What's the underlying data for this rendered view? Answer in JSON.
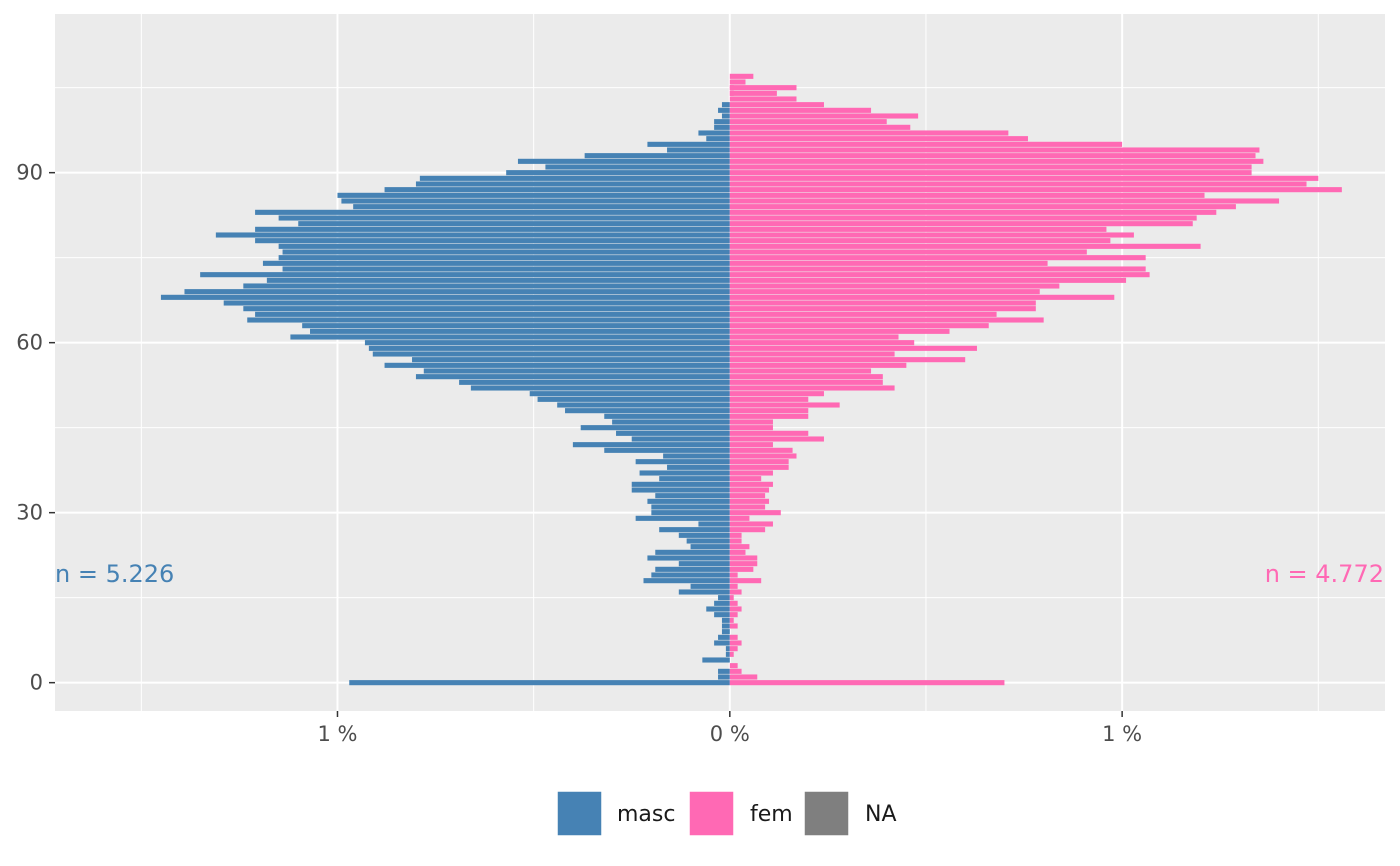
{
  "chart_data": {
    "type": "bar",
    "orientation": "horizontal",
    "layout": "population-pyramid",
    "title": "",
    "xlabel": "",
    "ylabel": "",
    "x_unit": "%",
    "xlim": [
      -1.72,
      1.67
    ],
    "ylim": [
      -5,
      118
    ],
    "x_ticks": [
      {
        "value": -1,
        "label": "1 %"
      },
      {
        "value": 0,
        "label": "0 %"
      },
      {
        "value": 1,
        "label": "1 %"
      }
    ],
    "y_ticks": [
      {
        "value": 0,
        "label": "0"
      },
      {
        "value": 30,
        "label": "30"
      },
      {
        "value": 60,
        "label": "60"
      },
      {
        "value": 90,
        "label": "90"
      }
    ],
    "y_minor_ticks": [
      15,
      45,
      75,
      105
    ],
    "x_minor_ticks": [
      -1.5,
      -0.5,
      0.5,
      1.5
    ],
    "grid": true,
    "legend_position": "bottom",
    "ages": [
      0,
      1,
      2,
      3,
      4,
      5,
      6,
      7,
      8,
      9,
      10,
      11,
      12,
      13,
      14,
      15,
      16,
      17,
      18,
      19,
      20,
      21,
      22,
      23,
      24,
      25,
      26,
      27,
      28,
      29,
      30,
      31,
      32,
      33,
      34,
      35,
      36,
      37,
      38,
      39,
      40,
      41,
      42,
      43,
      44,
      45,
      46,
      47,
      48,
      49,
      50,
      51,
      52,
      53,
      54,
      55,
      56,
      57,
      58,
      59,
      60,
      61,
      62,
      63,
      64,
      65,
      66,
      67,
      68,
      69,
      70,
      71,
      72,
      73,
      74,
      75,
      76,
      77,
      78,
      79,
      80,
      81,
      82,
      83,
      84,
      85,
      86,
      87,
      88,
      89,
      90,
      91,
      92,
      93,
      94,
      95,
      96,
      97,
      98,
      99,
      100,
      101,
      102,
      103,
      104,
      105,
      106,
      107,
      108,
      109,
      110,
      111,
      112
    ],
    "series": [
      {
        "name": "masc",
        "color": "#4682b4",
        "total_label": "n = 5.226",
        "values": [
          0.97,
          0.03,
          0.03,
          0,
          0.07,
          0.01,
          0.01,
          0.04,
          0.03,
          0.02,
          0.02,
          0.02,
          0.04,
          0.06,
          0.04,
          0.03,
          0.13,
          0.1,
          0.22,
          0.2,
          0.19,
          0.13,
          0.21,
          0.19,
          0.1,
          0.11,
          0.13,
          0.18,
          0.08,
          0.24,
          0.2,
          0.2,
          0.21,
          0.19,
          0.25,
          0.25,
          0.18,
          0.23,
          0.16,
          0.24,
          0.17,
          0.32,
          0.4,
          0.25,
          0.29,
          0.38,
          0.3,
          0.32,
          0.42,
          0.44,
          0.49,
          0.51,
          0.66,
          0.69,
          0.8,
          0.78,
          0.88,
          0.81,
          0.91,
          0.92,
          0.93,
          1.12,
          1.07,
          1.09,
          1.23,
          1.21,
          1.24,
          1.29,
          1.45,
          1.39,
          1.24,
          1.18,
          1.35,
          1.14,
          1.19,
          1.15,
          1.14,
          1.15,
          1.21,
          1.31,
          1.21,
          1.1,
          1.15,
          1.21,
          0.96,
          0.99,
          1.0,
          0.88,
          0.8,
          0.79,
          0.57,
          0.47,
          0.54,
          0.37,
          0.16,
          0.21,
          0.06,
          0.08,
          0.04,
          0.04,
          0.02,
          0.03,
          0.02,
          0,
          0,
          0,
          0,
          0,
          0,
          0,
          0,
          0,
          0
        ]
      },
      {
        "name": "fem",
        "color": "#ff69b4",
        "total_label": "n = 4.772",
        "values": [
          0.7,
          0.07,
          0.03,
          0.02,
          0,
          0.01,
          0.02,
          0.03,
          0.02,
          0,
          0.02,
          0.01,
          0.02,
          0.03,
          0.02,
          0.01,
          0.03,
          0.02,
          0.08,
          0.02,
          0.06,
          0.07,
          0.07,
          0.04,
          0.05,
          0.03,
          0.03,
          0.09,
          0.11,
          0.05,
          0.13,
          0.09,
          0.1,
          0.09,
          0.1,
          0.11,
          0.08,
          0.11,
          0.15,
          0.15,
          0.17,
          0.16,
          0.11,
          0.24,
          0.2,
          0.11,
          0.11,
          0.2,
          0.2,
          0.28,
          0.2,
          0.24,
          0.42,
          0.39,
          0.39,
          0.36,
          0.45,
          0.6,
          0.42,
          0.63,
          0.47,
          0.43,
          0.56,
          0.66,
          0.8,
          0.68,
          0.78,
          0.78,
          0.98,
          0.79,
          0.84,
          1.01,
          1.07,
          1.06,
          0.81,
          1.06,
          0.91,
          1.2,
          0.97,
          1.03,
          0.96,
          1.18,
          1.19,
          1.24,
          1.29,
          1.4,
          1.21,
          1.56,
          1.47,
          1.5,
          1.33,
          1.33,
          1.36,
          1.34,
          1.35,
          1.0,
          0.76,
          0.71,
          0.46,
          0.4,
          0.48,
          0.36,
          0.24,
          0.17,
          0.12,
          0.17,
          0.04,
          0.06,
          0,
          0,
          0,
          0,
          0
        ]
      },
      {
        "name": "NA",
        "color": "#7f7f7f",
        "values": []
      }
    ],
    "extra_points_fem": [
      {
        "age": 104,
        "value": 0.01
      },
      {
        "age": 105,
        "value": 0.01
      }
    ]
  }
}
